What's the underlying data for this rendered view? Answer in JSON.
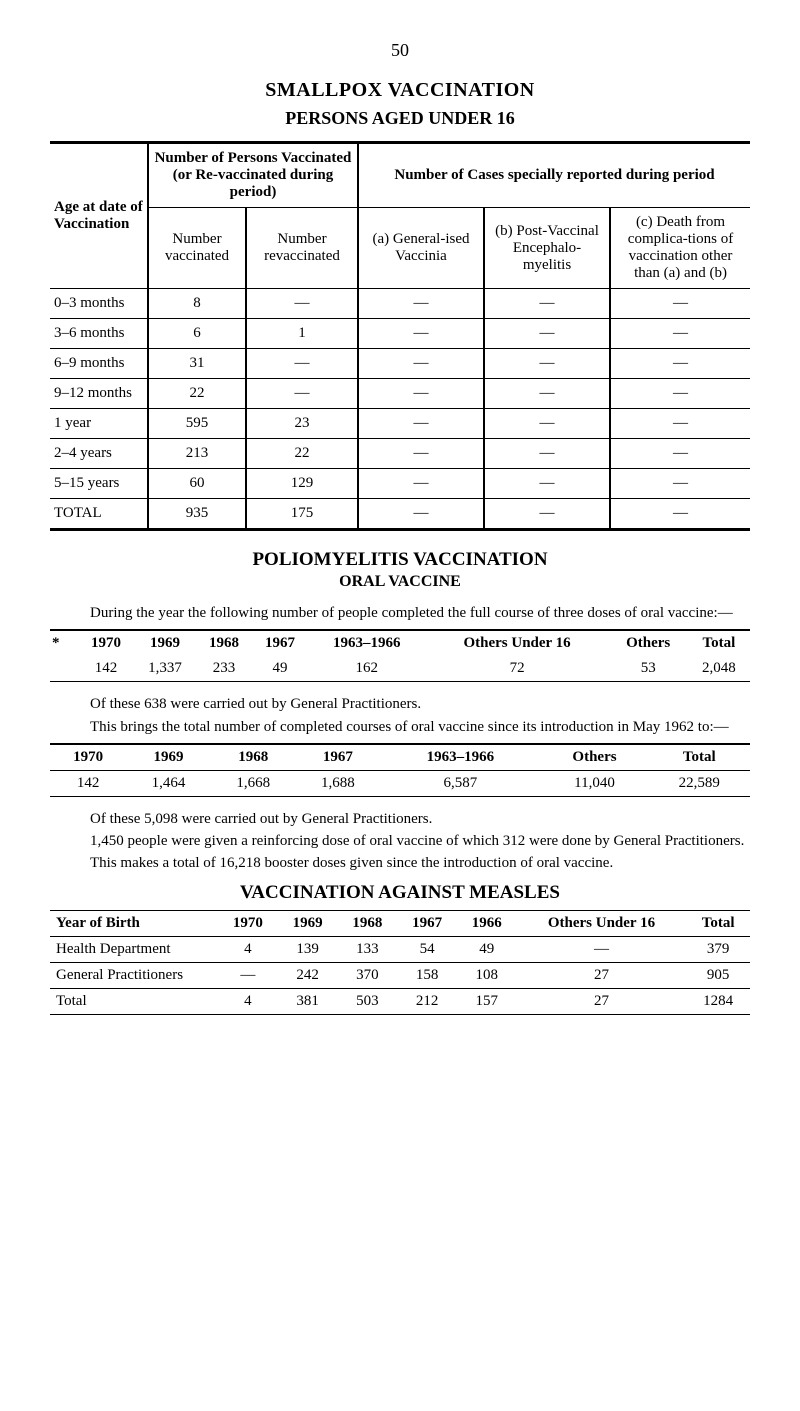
{
  "page_number": "50",
  "smallpox": {
    "title": "SMALLPOX VACCINATION",
    "subtitle": "PERSONS AGED UNDER 16",
    "header": {
      "age": "Age at date of Vaccination",
      "group1": "Number of Persons Vaccinated (or Re-vaccinated during period)",
      "group2": "Number of Cases specially reported during period",
      "col_num_vacc": "Number vaccinated",
      "col_num_revacc": "Number revaccinated",
      "col_a": "(a) General-ised Vaccinia",
      "col_b": "(b) Post-Vaccinal Encephalo-myelitis",
      "col_c": "(c) Death from complica-tions of vaccination other than (a) and (b)"
    },
    "rows": [
      {
        "label": "0–3 months",
        "vacc": "8",
        "revacc": "—",
        "a": "—",
        "b": "—",
        "c": "—"
      },
      {
        "label": "3–6 months",
        "vacc": "6",
        "revacc": "1",
        "a": "—",
        "b": "—",
        "c": "—"
      },
      {
        "label": "6–9 months",
        "vacc": "31",
        "revacc": "—",
        "a": "—",
        "b": "—",
        "c": "—"
      },
      {
        "label": "9–12 months",
        "vacc": "22",
        "revacc": "—",
        "a": "—",
        "b": "—",
        "c": "—"
      },
      {
        "label": "1 year",
        "vacc": "595",
        "revacc": "23",
        "a": "—",
        "b": "—",
        "c": "—"
      },
      {
        "label": "2–4 years",
        "vacc": "213",
        "revacc": "22",
        "a": "—",
        "b": "—",
        "c": "—"
      },
      {
        "label": "5–15 years",
        "vacc": "60",
        "revacc": "129",
        "a": "—",
        "b": "—",
        "c": "—"
      },
      {
        "label": "TOTAL",
        "vacc": "935",
        "revacc": "175",
        "a": "—",
        "b": "—",
        "c": "—"
      }
    ]
  },
  "polio": {
    "title": "POLIOMYELITIS VACCINATION",
    "subtitle": "ORAL VACCINE",
    "intro": "During the year the following number of people completed the full course of three doses of oral vaccine:—",
    "table1": {
      "star": "*",
      "cols": [
        "1970",
        "1969",
        "1968",
        "1967",
        "1963–1966",
        "Others Under 16",
        "Others",
        "Total"
      ],
      "row": [
        "142",
        "1,337",
        "233",
        "49",
        "162",
        "72",
        "53",
        "2,048"
      ]
    },
    "note1a": "Of these 638 were carried out by General Practitioners.",
    "note1b": "This brings the total number of completed courses of oral vaccine since its introduction in May 1962 to:—",
    "table2": {
      "cols": [
        "1970",
        "1969",
        "1968",
        "1967",
        "1963–1966",
        "Others",
        "Total"
      ],
      "row": [
        "142",
        "1,464",
        "1,668",
        "1,688",
        "6,587",
        "11,040",
        "22,589"
      ]
    },
    "note2a": "Of these 5,098 were carried out by General Practitioners.",
    "note2b": "1,450 people were given a reinforcing dose of oral vaccine of which 312 were done by General Practitioners.",
    "note2c": "This makes a total of 16,218 booster doses given since the introduction of oral vaccine."
  },
  "measles": {
    "title": "VACCINATION AGAINST MEASLES",
    "header": {
      "yob": "Year of Birth",
      "cols": [
        "1970",
        "1969",
        "1968",
        "1967",
        "1966",
        "Others Under 16",
        "Total"
      ]
    },
    "rows": [
      {
        "label": "Health Department",
        "vals": [
          "4",
          "139",
          "133",
          "54",
          "49",
          "—",
          "379"
        ]
      },
      {
        "label": "General Practitioners",
        "vals": [
          "—",
          "242",
          "370",
          "158",
          "108",
          "27",
          "905"
        ]
      },
      {
        "label": "Total",
        "vals": [
          "4",
          "381",
          "503",
          "212",
          "157",
          "27",
          "1284"
        ]
      }
    ]
  }
}
